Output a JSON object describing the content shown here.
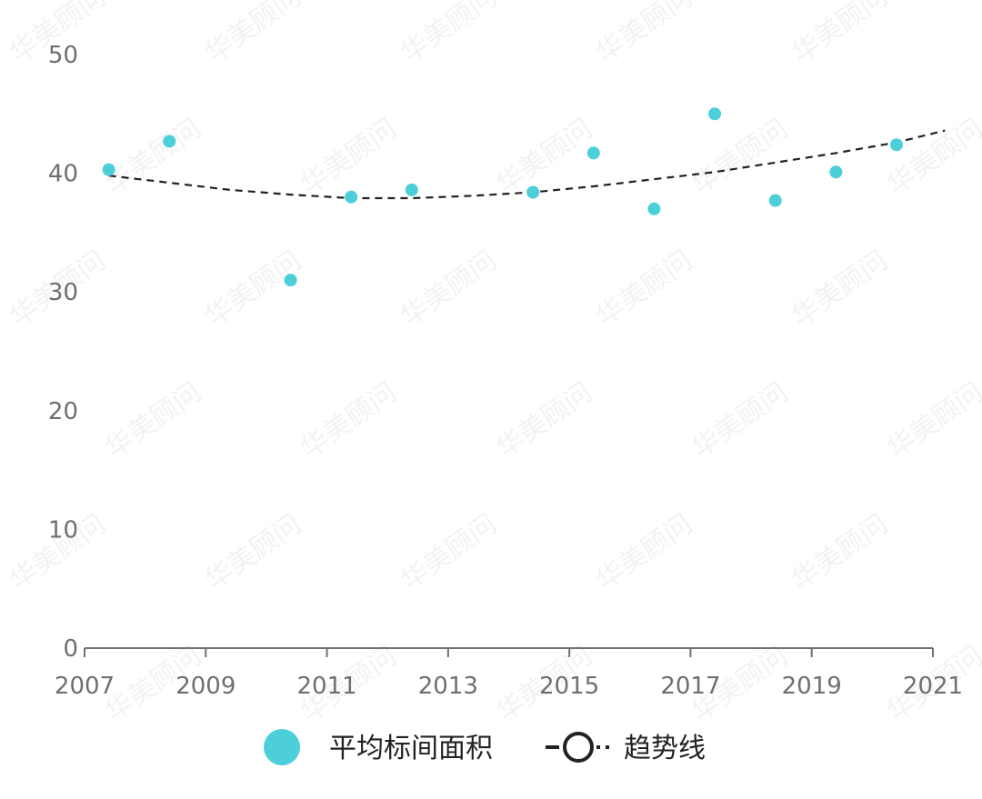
{
  "chart_data": {
    "type": "scatter",
    "title": "",
    "xlabel": "",
    "ylabel": "",
    "xlim": [
      2007,
      2021
    ],
    "ylim": [
      0,
      50
    ],
    "x_ticks": [
      "2007",
      "2009",
      "2011",
      "2013",
      "2015",
      "2017",
      "2019",
      "2021"
    ],
    "y_ticks": [
      "0",
      "10",
      "20",
      "30",
      "40",
      "50"
    ],
    "grid": false,
    "legend_position": "bottom",
    "series": [
      {
        "name": "平均标间面积",
        "type": "scatter",
        "color": "#4ccfd9",
        "points": [
          {
            "x": 2007.4,
            "y": 40.3
          },
          {
            "x": 2008.4,
            "y": 42.7
          },
          {
            "x": 2010.4,
            "y": 31.0
          },
          {
            "x": 2011.4,
            "y": 38.0
          },
          {
            "x": 2012.4,
            "y": 38.6
          },
          {
            "x": 2014.4,
            "y": 38.4
          },
          {
            "x": 2015.4,
            "y": 41.7
          },
          {
            "x": 2016.4,
            "y": 37.0
          },
          {
            "x": 2017.4,
            "y": 45.0
          },
          {
            "x": 2018.4,
            "y": 37.7
          },
          {
            "x": 2019.4,
            "y": 40.1
          },
          {
            "x": 2020.4,
            "y": 42.4
          }
        ]
      },
      {
        "name": "趋势线",
        "type": "line",
        "style": "dashed",
        "color": "#222222",
        "points": [
          {
            "x": 2007.4,
            "y": 39.8
          },
          {
            "x": 2008.4,
            "y": 39.2
          },
          {
            "x": 2009.4,
            "y": 38.6
          },
          {
            "x": 2010.4,
            "y": 38.2
          },
          {
            "x": 2011.4,
            "y": 37.9
          },
          {
            "x": 2012.4,
            "y": 37.9
          },
          {
            "x": 2013.4,
            "y": 38.1
          },
          {
            "x": 2014.4,
            "y": 38.4
          },
          {
            "x": 2015.4,
            "y": 38.9
          },
          {
            "x": 2016.4,
            "y": 39.5
          },
          {
            "x": 2017.4,
            "y": 40.1
          },
          {
            "x": 2018.4,
            "y": 40.9
          },
          {
            "x": 2019.4,
            "y": 41.7
          },
          {
            "x": 2020.4,
            "y": 42.6
          },
          {
            "x": 2021.2,
            "y": 43.6
          }
        ]
      }
    ]
  },
  "watermark_text": "华美顾问"
}
